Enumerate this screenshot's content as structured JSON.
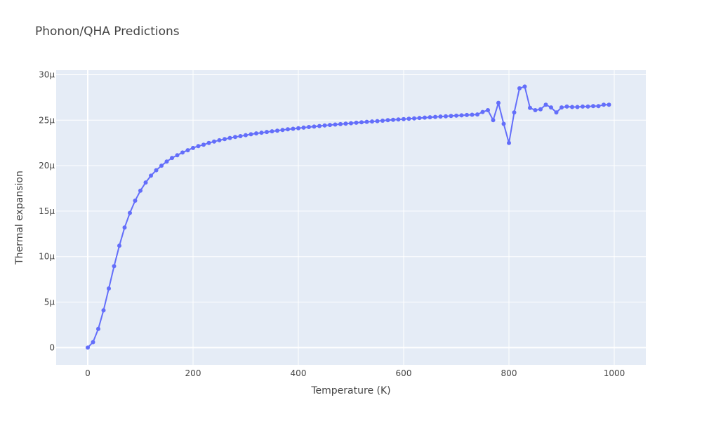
{
  "chart_data": {
    "type": "line",
    "title": "Phonon/QHA Predictions",
    "xlabel": "Temperature (K)",
    "ylabel": "Thermal expansion",
    "xlim": [
      -60,
      1060
    ],
    "ylim": [
      -1.9e-06,
      3.05e-05
    ],
    "x_ticks": [
      0,
      200,
      400,
      600,
      800,
      1000
    ],
    "x_tick_labels": [
      "0",
      "200",
      "400",
      "600",
      "800",
      "1000"
    ],
    "y_ticks": [
      0,
      5e-06,
      1e-05,
      1.5e-05,
      2e-05,
      2.5e-05,
      3e-05
    ],
    "y_tick_labels": [
      "0",
      "5μ",
      "10μ",
      "15μ",
      "20μ",
      "25μ",
      "30μ"
    ],
    "grid": true,
    "legend": "none",
    "colors": {
      "plot_bg": "#e5ecf6",
      "grid": "#ffffff",
      "series": "#636efa"
    },
    "series": [
      {
        "mode": "lines+markers",
        "x": [
          0,
          10,
          20,
          30,
          40,
          50,
          60,
          70,
          80,
          90,
          100,
          110,
          120,
          130,
          140,
          150,
          160,
          170,
          180,
          190,
          200,
          210,
          220,
          230,
          240,
          250,
          260,
          270,
          280,
          290,
          300,
          310,
          320,
          330,
          340,
          350,
          360,
          370,
          380,
          390,
          400,
          410,
          420,
          430,
          440,
          450,
          460,
          470,
          480,
          490,
          500,
          510,
          520,
          530,
          540,
          550,
          560,
          570,
          580,
          590,
          600,
          610,
          620,
          630,
          640,
          650,
          660,
          670,
          680,
          690,
          700,
          710,
          720,
          730,
          740,
          750,
          760,
          770,
          780,
          790,
          800,
          810,
          820,
          830,
          840,
          850,
          860,
          870,
          880,
          890,
          900,
          910,
          920,
          930,
          940,
          950,
          960,
          970,
          980,
          990
        ],
        "y": [
          0,
          6e-07,
          2.05e-06,
          4.1e-06,
          6.5e-06,
          8.95e-06,
          1.12e-05,
          1.32e-05,
          1.48e-05,
          1.615e-05,
          1.725e-05,
          1.815e-05,
          1.89e-05,
          1.95e-05,
          2e-05,
          2.045e-05,
          2.085e-05,
          2.115e-05,
          2.145e-05,
          2.17e-05,
          2.195e-05,
          2.215e-05,
          2.23e-05,
          2.25e-05,
          2.265e-05,
          2.28e-05,
          2.292e-05,
          2.305e-05,
          2.315e-05,
          2.325e-05,
          2.335e-05,
          2.345e-05,
          2.355e-05,
          2.362e-05,
          2.37e-05,
          2.378e-05,
          2.385e-05,
          2.392e-05,
          2.4e-05,
          2.406e-05,
          2.412e-05,
          2.418e-05,
          2.425e-05,
          2.43e-05,
          2.436e-05,
          2.442e-05,
          2.447e-05,
          2.452e-05,
          2.457e-05,
          2.462e-05,
          2.467e-05,
          2.472e-05,
          2.477e-05,
          2.482e-05,
          2.486e-05,
          2.49e-05,
          2.495e-05,
          2.5e-05,
          2.504e-05,
          2.508e-05,
          2.512e-05,
          2.516e-05,
          2.52e-05,
          2.524e-05,
          2.528e-05,
          2.532e-05,
          2.536e-05,
          2.54e-05,
          2.543e-05,
          2.547e-05,
          2.55e-05,
          2.553e-05,
          2.557e-05,
          2.56e-05,
          2.563e-05,
          2.59e-05,
          2.61e-05,
          2.5e-05,
          2.69e-05,
          2.46e-05,
          2.25e-05,
          2.585e-05,
          2.85e-05,
          2.87e-05,
          2.635e-05,
          2.61e-05,
          2.62e-05,
          2.67e-05,
          2.64e-05,
          2.585e-05,
          2.64e-05,
          2.65e-05,
          2.645e-05,
          2.645e-05,
          2.65e-05,
          2.65e-05,
          2.655e-05,
          2.655e-05,
          2.67e-05,
          2.67e-05
        ]
      }
    ]
  }
}
